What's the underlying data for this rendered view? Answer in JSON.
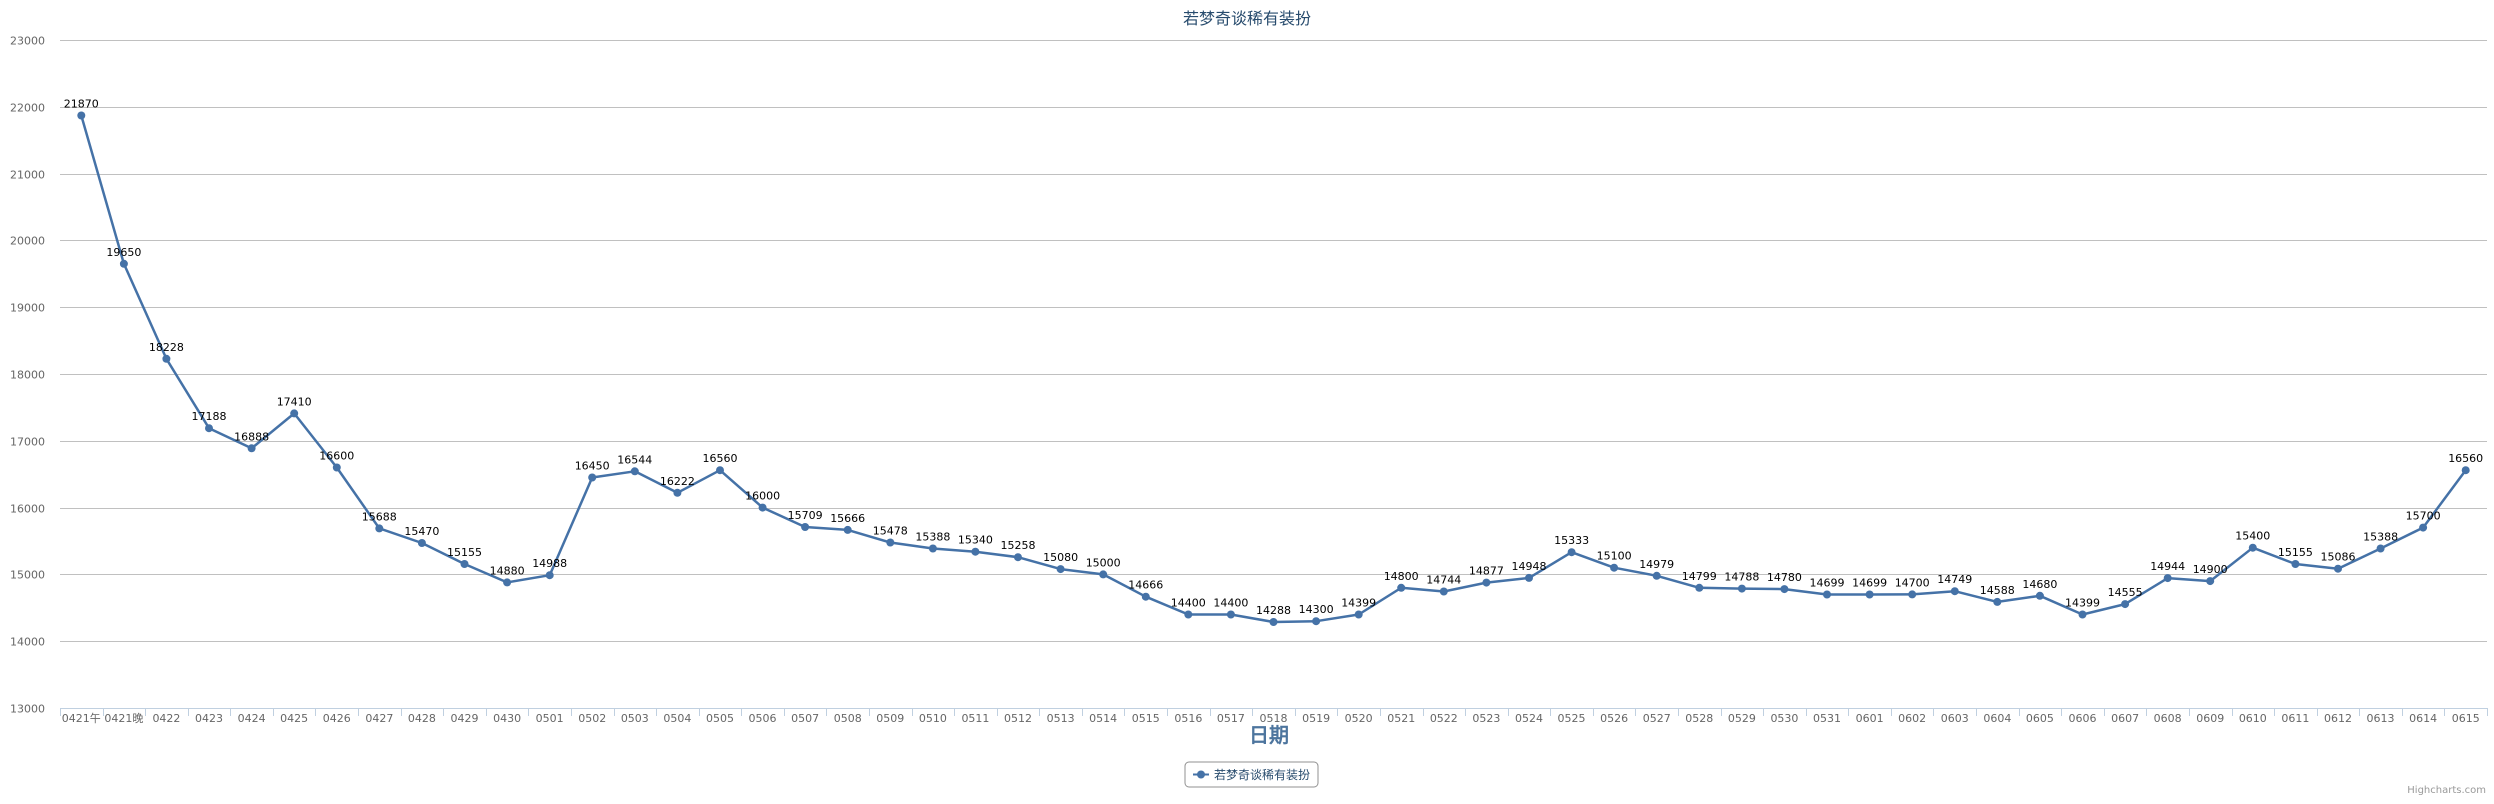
{
  "chart_data": {
    "type": "line",
    "title": "若梦奇谈稀有装扮",
    "xlabel": "日期",
    "ylabel": "",
    "ylim": [
      13000,
      23000
    ],
    "yticks": [
      13000,
      14000,
      15000,
      16000,
      17000,
      18000,
      19000,
      20000,
      21000,
      22000,
      23000
    ],
    "grid": true,
    "legend": "bottom-center",
    "categories": [
      "0421午",
      "0421晚",
      "0422",
      "0423",
      "0424",
      "0425",
      "0426",
      "0427",
      "0428",
      "0429",
      "0430",
      "0501",
      "0502",
      "0503",
      "0504",
      "0505",
      "0506",
      "0507",
      "0508",
      "0509",
      "0510",
      "0511",
      "0512",
      "0513",
      "0514",
      "0515",
      "0516",
      "0517",
      "0518",
      "0519",
      "0520",
      "0521",
      "0522",
      "0523",
      "0524",
      "0525",
      "0526",
      "0527",
      "0528",
      "0529",
      "0530",
      "0531",
      "0601",
      "0602",
      "0603",
      "0604",
      "0605",
      "0606",
      "0607",
      "0608",
      "0609",
      "0610",
      "0611",
      "0612",
      "0613",
      "0614",
      "0615"
    ],
    "series": [
      {
        "name": "若梦奇谈稀有装扮",
        "color": "#4572A7",
        "values": [
          21870,
          19650,
          18228,
          17188,
          16888,
          17410,
          16600,
          15688,
          15470,
          15155,
          14880,
          14988,
          16450,
          16544,
          16222,
          16560,
          16000,
          15709,
          15666,
          15478,
          15388,
          15340,
          15258,
          15080,
          15000,
          14666,
          14400,
          14400,
          14288,
          14300,
          14399,
          14800,
          14744,
          14877,
          14948,
          15333,
          15100,
          14979,
          14799,
          14788,
          14780,
          14699,
          14699,
          14700,
          14749,
          14588,
          14680,
          14399,
          14555,
          14944,
          14900,
          15400,
          15155,
          15086,
          15388,
          15700,
          16560
        ]
      }
    ]
  },
  "credits": "Highcharts.com"
}
